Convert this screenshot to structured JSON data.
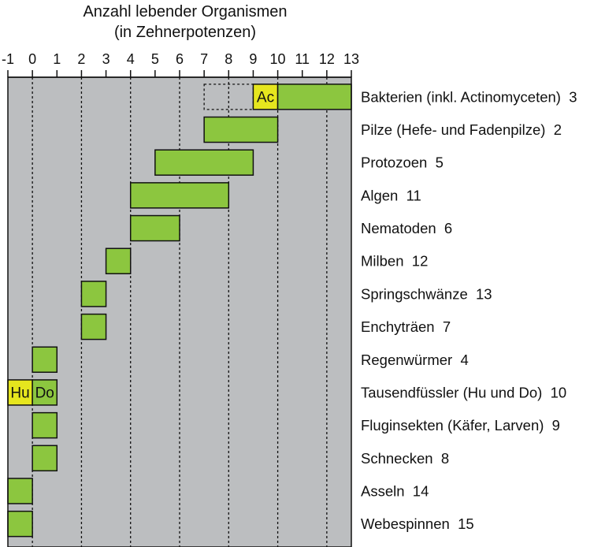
{
  "chart_data": {
    "type": "bar",
    "orientation": "horizontal-range",
    "title": [
      "Anzahl lebender Organismen",
      "(in Zehnerpotenzen)"
    ],
    "xlabel": "",
    "ylabel": "",
    "xlim": [
      -1,
      13
    ],
    "x_ticks": [
      "-1",
      "0",
      "1",
      "2",
      "3",
      "4",
      "5",
      "6",
      "7",
      "8",
      "9",
      "10",
      "11",
      "12",
      "13"
    ],
    "gridlines": "dotted vertical at every even power (0, 2, 4, ... 12)",
    "colors": {
      "plot_background": "#bcbec0",
      "bar_fill": "#8cc63f",
      "highlight_fill": "#e6e61e",
      "bar_stroke": "#111111",
      "grid": "#111111"
    },
    "categories": [
      "Bakterien (inkl. Actinomyceten)  3",
      "Pilze (Hefe- und Fadenpilze)  2",
      "Protozoen  5",
      "Algen  11",
      "Nematoden  6",
      "Milben  12",
      "Springschwänze  13",
      "Enchyträen  7",
      "Regenwürmer  4",
      "Tausendfüssler (Hu und Do)  10",
      "Fluginsekten (Käfer, Larven)  9",
      "Schnecken  8",
      "Asseln  14",
      "Webespinnen  15"
    ],
    "ranges": [
      {
        "segments": [
          {
            "from": 7,
            "to": 9,
            "style": "dashed-outline"
          },
          {
            "from": 9,
            "to": 10,
            "style": "highlight",
            "label": "Ac"
          },
          {
            "from": 10,
            "to": 13,
            "style": "bar"
          }
        ]
      },
      {
        "segments": [
          {
            "from": 7,
            "to": 10,
            "style": "bar"
          }
        ]
      },
      {
        "segments": [
          {
            "from": 5,
            "to": 9,
            "style": "bar"
          }
        ]
      },
      {
        "segments": [
          {
            "from": 4,
            "to": 8,
            "style": "bar"
          }
        ]
      },
      {
        "segments": [
          {
            "from": 4,
            "to": 6,
            "style": "bar"
          }
        ]
      },
      {
        "segments": [
          {
            "from": 3,
            "to": 4,
            "style": "bar"
          }
        ]
      },
      {
        "segments": [
          {
            "from": 2,
            "to": 3,
            "style": "bar"
          }
        ]
      },
      {
        "segments": [
          {
            "from": 2,
            "to": 3,
            "style": "bar"
          }
        ]
      },
      {
        "segments": [
          {
            "from": 0,
            "to": 1,
            "style": "bar"
          }
        ]
      },
      {
        "segments": [
          {
            "from": -1,
            "to": 0,
            "style": "highlight",
            "label": "Hu"
          },
          {
            "from": 0,
            "to": 1,
            "style": "bar",
            "label": "Do"
          }
        ]
      },
      {
        "segments": [
          {
            "from": 0,
            "to": 1,
            "style": "bar"
          }
        ]
      },
      {
        "segments": [
          {
            "from": 0,
            "to": 1,
            "style": "bar"
          }
        ]
      },
      {
        "segments": [
          {
            "from": -1,
            "to": 0,
            "style": "bar"
          }
        ]
      },
      {
        "segments": [
          {
            "from": -1,
            "to": 0,
            "style": "bar"
          }
        ]
      }
    ]
  }
}
